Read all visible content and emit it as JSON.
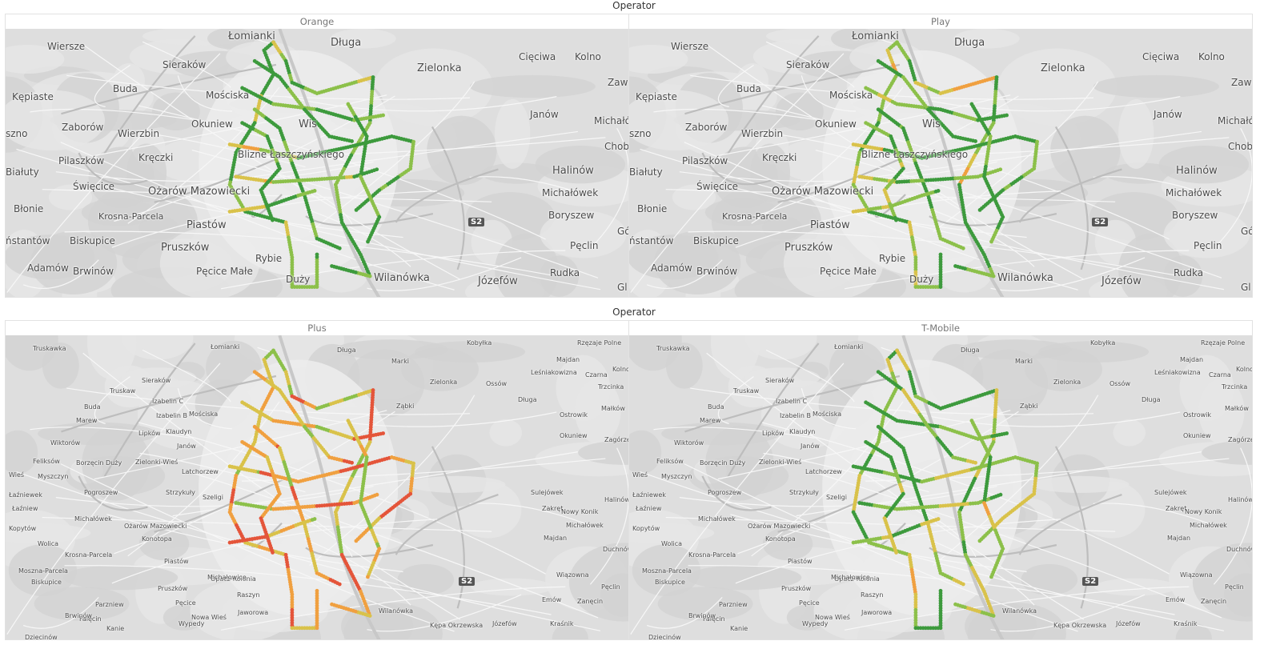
{
  "header_top": "Operator",
  "header_bottom": "Operator",
  "panels": [
    {
      "name": "Orange"
    },
    {
      "name": "Play"
    },
    {
      "name": "Plus"
    },
    {
      "name": "T-Mobile"
    }
  ],
  "route_colors": {
    "good": "#3d9a3d",
    "ok": "#8cc04a",
    "fair": "#d9c24a",
    "weak": "#f0a040",
    "bad": "#e4553a"
  },
  "panel_signal_bias": [
    0.15,
    0.3,
    0.62,
    0.22
  ],
  "labels_large": [
    "Łomianki",
    "Długa",
    "Wiersze",
    "Sieraków",
    "Zielonka",
    "Cięciwa",
    "Kolno",
    "Buda",
    "Mościska",
    "Kępiaste",
    "Janów",
    "Okuniew",
    "Zaborów",
    "Wierzbin",
    "Michałów",
    "Chob",
    "Kręczki",
    "Pilaszków",
    "Halinów",
    "Święcice",
    "Ożarów Mazowiecki",
    "Michałówek",
    "Błonie",
    "Krosna-Parcela",
    "Boryszew",
    "Piastów",
    "Pruszków",
    "Rybie",
    "Biskupice",
    "Pęclin",
    "Adamów",
    "Brwinów",
    "Pęcice Małe",
    "Wilanówka",
    "Józefów",
    "Rudka",
    "sznо",
    "Białuty",
    "ństantów",
    "Zaw",
    "Gó",
    "Gl",
    "Duży",
    "Wis",
    "Blizne Łaszczyńskiego",
    "S2"
  ],
  "labels_small": [
    "Truskawka",
    "Łomianki",
    "Długa",
    "Marki",
    "Kobyłka",
    "Rzęzaje Polne",
    "Sieraków",
    "Zielonka",
    "Majdan",
    "Czarna",
    "Kolno",
    "Truskaw",
    "Izabelin C",
    "Leśniakowizna",
    "Ossów",
    "Trzcinka",
    "Buda",
    "Izabelin B",
    "Mościska",
    "Ząbki",
    "Długa",
    "Marew",
    "Lipków",
    "Klaudyn",
    "Ostrowik",
    "Małków",
    "Wiktorów",
    "Janów",
    "Okuniew",
    "Zagórze",
    "Feliksów",
    "Borzęcin Duży",
    "Zielonki-Wieś",
    "Sulejówek",
    "Wieś",
    "Myszczyn",
    "Latchorzew",
    "Łaźniewek",
    "Pogroszew",
    "Strzykuły",
    "Halinów",
    "Szeligi",
    "Łaźniew",
    "Zakręt",
    "Nowy Konik",
    "Michałówek",
    "Michałówek",
    "Ożarów Mazowiecki",
    "Kopytów",
    "Konotopa",
    "Majdan",
    "Wolica",
    "Duchnów",
    "Krosna-Parcela",
    "Piastów",
    "Moszna-Parcela",
    "Opacz-Kolonia",
    "Michałowice",
    "Wiązowna",
    "Biskupice",
    "Raszyn",
    "Pęclin",
    "Pruszków",
    "Emów",
    "Parzniew",
    "Pęcice",
    "Zanęcin",
    "Falęcin",
    "Jaworowa",
    "Wilanówka",
    "Kanie",
    "Brwinów",
    "Nowa Wieś",
    "Dziecinów",
    "Wypedy",
    "Kępa Okrzewska",
    "Józefów",
    "Kraśnik",
    "S2"
  ]
}
